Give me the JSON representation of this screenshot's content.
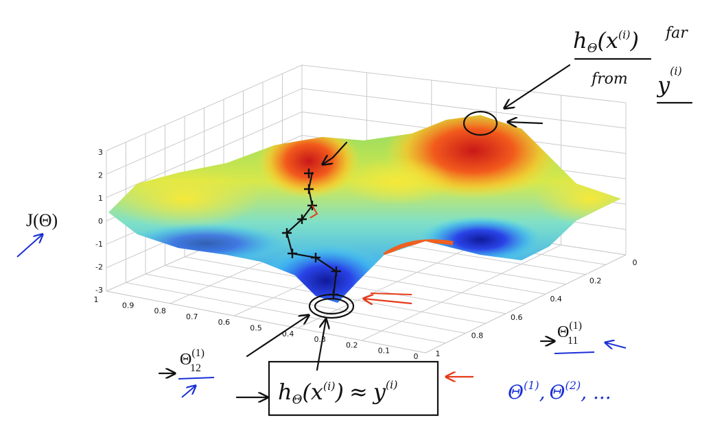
{
  "plot": {
    "z_label": "J(Θ)",
    "z_ticks": [
      "3",
      "2",
      "1",
      "0",
      "-1",
      "-2",
      "-3"
    ],
    "x_ticks": [
      "1",
      "0.9",
      "0.8",
      "0.7",
      "0.6",
      "0.5",
      "0.4",
      "0.3",
      "0.2",
      "0.1",
      "0"
    ],
    "y_ticks": [
      "0",
      "0.2",
      "0.4",
      "0.6",
      "0.8",
      "1"
    ]
  },
  "notes": {
    "far": {
      "h": "h",
      "sub": "Θ",
      "arg": "(x",
      "arg_sup": "(i)",
      "close": ")",
      "word1": "far",
      "word2": "from",
      "y": "y",
      "y_sup": "(i)"
    },
    "near": {
      "h": "h",
      "sub": "Θ",
      "arg": "(x",
      "arg_sup": "(i)",
      "close": ")",
      "approx": "≈",
      "y": "y",
      "y_sup": "(i)"
    },
    "theta12": {
      "base": "Θ",
      "sup": "(1)",
      "sub": "12"
    },
    "theta11": {
      "base": "Θ",
      "sup": "(1)",
      "sub": "11"
    },
    "thetas": {
      "t1": "Θ",
      "s1": "(1)",
      "comma": ",",
      "t2": "Θ",
      "s2": "(2)",
      "rest": ", ..."
    }
  }
}
